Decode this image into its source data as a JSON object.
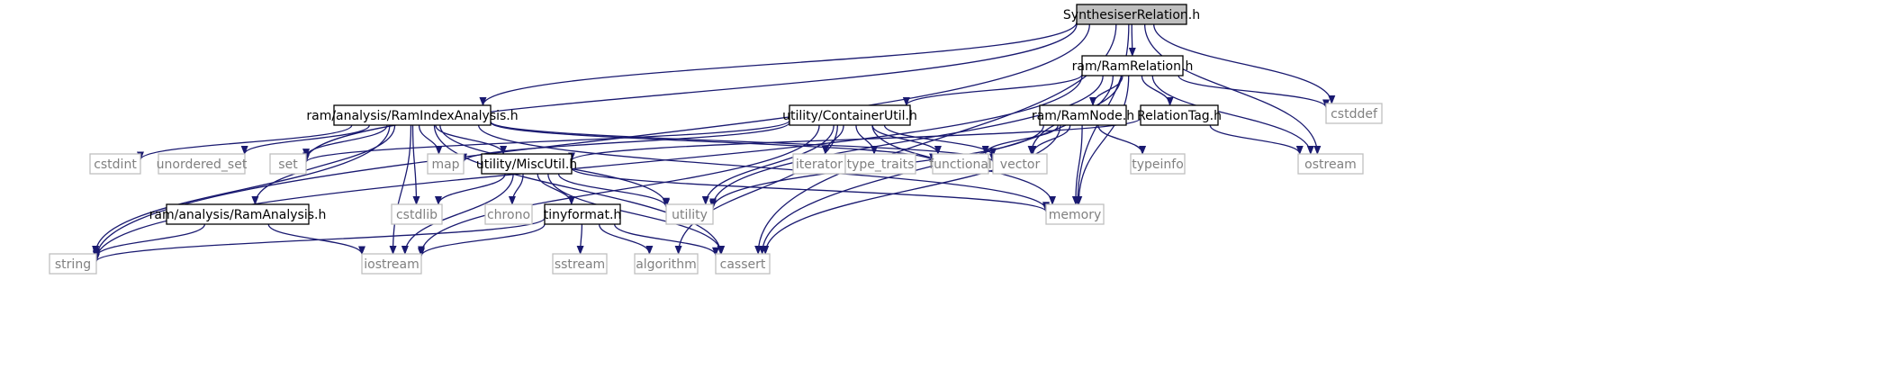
{
  "graph": {
    "nodes": [
      {
        "id": "n0",
        "label": "SynthesiserRelation.h",
        "style": "focus"
      },
      {
        "id": "n1",
        "label": "ram/RamRelation.h",
        "style": "doc"
      },
      {
        "id": "n2",
        "label": "cstddef",
        "style": "ext"
      },
      {
        "id": "n3",
        "label": "ram/analysis/RamIndexAnalysis.h",
        "style": "doc"
      },
      {
        "id": "n4",
        "label": "utility/ContainerUtil.h",
        "style": "doc"
      },
      {
        "id": "n5",
        "label": "ram/RamNode.h",
        "style": "doc"
      },
      {
        "id": "n6",
        "label": "RelationTag.h",
        "style": "doc"
      },
      {
        "id": "n7",
        "label": "ostream",
        "style": "ext"
      },
      {
        "id": "n8",
        "label": "cstdint",
        "style": "ext"
      },
      {
        "id": "n9",
        "label": "unordered_set",
        "style": "ext"
      },
      {
        "id": "n10",
        "label": "set",
        "style": "ext"
      },
      {
        "id": "n11",
        "label": "map",
        "style": "ext"
      },
      {
        "id": "n12",
        "label": "utility/MiscUtil.h",
        "style": "doc"
      },
      {
        "id": "n13",
        "label": "iterator",
        "style": "ext"
      },
      {
        "id": "n14",
        "label": "type_traits",
        "style": "ext"
      },
      {
        "id": "n15",
        "label": "functional",
        "style": "ext"
      },
      {
        "id": "n16",
        "label": "vector",
        "style": "ext"
      },
      {
        "id": "n17",
        "label": "typeinfo",
        "style": "ext"
      },
      {
        "id": "n18",
        "label": "ram/analysis/RamAnalysis.h",
        "style": "doc"
      },
      {
        "id": "n19",
        "label": "cstdlib",
        "style": "ext"
      },
      {
        "id": "n20",
        "label": "chrono",
        "style": "ext"
      },
      {
        "id": "n21",
        "label": "tinyformat.h",
        "style": "doc"
      },
      {
        "id": "n22",
        "label": "utility",
        "style": "ext"
      },
      {
        "id": "n23",
        "label": "memory",
        "style": "ext"
      },
      {
        "id": "n24",
        "label": "string",
        "style": "ext"
      },
      {
        "id": "n25",
        "label": "iostream",
        "style": "ext"
      },
      {
        "id": "n26",
        "label": "sstream",
        "style": "ext"
      },
      {
        "id": "n27",
        "label": "algorithm",
        "style": "ext"
      },
      {
        "id": "n28",
        "label": "cassert",
        "style": "ext"
      }
    ],
    "edges": [
      [
        "n0",
        "n1"
      ],
      [
        "n0",
        "n2"
      ],
      [
        "n0",
        "n3"
      ],
      [
        "n0",
        "n7"
      ],
      [
        "n0",
        "n10"
      ],
      [
        "n0",
        "n23"
      ],
      [
        "n0",
        "n24"
      ],
      [
        "n0",
        "n28"
      ],
      [
        "n1",
        "n4"
      ],
      [
        "n1",
        "n5"
      ],
      [
        "n1",
        "n6"
      ],
      [
        "n1",
        "n2"
      ],
      [
        "n1",
        "n7"
      ],
      [
        "n1",
        "n16"
      ],
      [
        "n1",
        "n22"
      ],
      [
        "n1",
        "n23"
      ],
      [
        "n1",
        "n24"
      ],
      [
        "n1",
        "n28"
      ],
      [
        "n3",
        "n8"
      ],
      [
        "n3",
        "n9"
      ],
      [
        "n3",
        "n10"
      ],
      [
        "n3",
        "n11"
      ],
      [
        "n3",
        "n12"
      ],
      [
        "n3",
        "n15"
      ],
      [
        "n3",
        "n16"
      ],
      [
        "n3",
        "n18"
      ],
      [
        "n3",
        "n19"
      ],
      [
        "n3",
        "n22"
      ],
      [
        "n3",
        "n23"
      ],
      [
        "n3",
        "n24"
      ],
      [
        "n3",
        "n25"
      ],
      [
        "n3",
        "n28"
      ],
      [
        "n4",
        "n10"
      ],
      [
        "n4",
        "n11"
      ],
      [
        "n4",
        "n13"
      ],
      [
        "n4",
        "n14"
      ],
      [
        "n4",
        "n15"
      ],
      [
        "n4",
        "n16"
      ],
      [
        "n4",
        "n22"
      ],
      [
        "n4",
        "n23"
      ],
      [
        "n4",
        "n25"
      ],
      [
        "n4",
        "n27"
      ],
      [
        "n5",
        "n15"
      ],
      [
        "n5",
        "n16"
      ],
      [
        "n5",
        "n17"
      ],
      [
        "n5",
        "n22"
      ],
      [
        "n5",
        "n23"
      ],
      [
        "n5",
        "n28"
      ],
      [
        "n6",
        "n7"
      ],
      [
        "n6",
        "n12"
      ],
      [
        "n12",
        "n19"
      ],
      [
        "n12",
        "n20"
      ],
      [
        "n12",
        "n21"
      ],
      [
        "n12",
        "n22"
      ],
      [
        "n12",
        "n23"
      ],
      [
        "n12",
        "n25"
      ],
      [
        "n12",
        "n28"
      ],
      [
        "n18",
        "n24"
      ],
      [
        "n18",
        "n25"
      ],
      [
        "n21",
        "n24"
      ],
      [
        "n21",
        "n25"
      ],
      [
        "n21",
        "n26"
      ],
      [
        "n21",
        "n27"
      ],
      [
        "n21",
        "n28"
      ]
    ],
    "colors": {
      "edge": "#191970",
      "doc_border": "#000000",
      "ext_border": "#bfbfbf",
      "ext_text": "#808080",
      "focus_fill": "#bfbfbf"
    }
  }
}
